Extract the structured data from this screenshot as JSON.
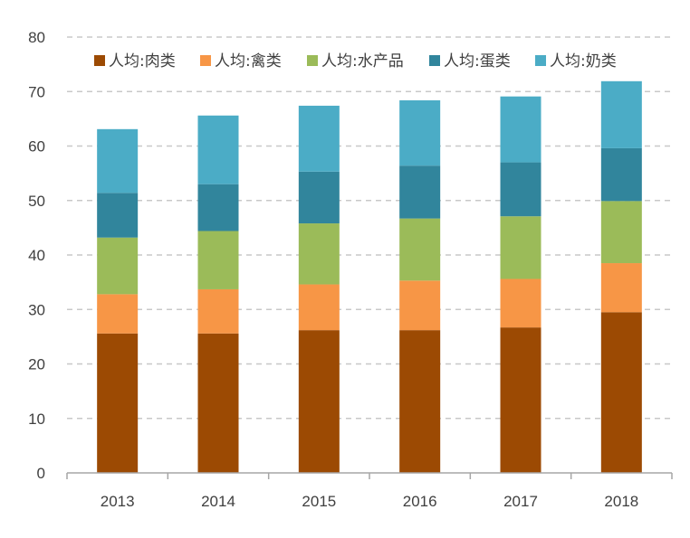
{
  "chart_data": {
    "type": "bar",
    "stacked": true,
    "categories": [
      "2013",
      "2014",
      "2015",
      "2016",
      "2017",
      "2018"
    ],
    "series": [
      {
        "name": "人均:肉类",
        "color": "#9c4a03",
        "values": [
          25.6,
          25.6,
          26.2,
          26.2,
          26.7,
          29.5
        ]
      },
      {
        "name": "人均:禽类",
        "color": "#f79646",
        "values": [
          7.2,
          8.1,
          8.4,
          9.1,
          8.9,
          9.0
        ]
      },
      {
        "name": "人均:水产品",
        "color": "#9bbb59",
        "values": [
          10.4,
          10.7,
          11.2,
          11.4,
          11.5,
          11.4
        ]
      },
      {
        "name": "人均:蛋类",
        "color": "#31859c",
        "values": [
          8.2,
          8.6,
          9.5,
          9.7,
          9.9,
          9.7
        ]
      },
      {
        "name": "人均:奶类",
        "color": "#4bacc6",
        "values": [
          11.7,
          12.6,
          12.1,
          12.0,
          12.1,
          12.3
        ]
      }
    ],
    "ylim": [
      0,
      80
    ],
    "yticks": [
      0,
      10,
      20,
      30,
      40,
      50,
      60,
      70,
      80
    ],
    "grid": "horizontal-dashed",
    "legend_position": "top",
    "title": "",
    "xlabel": "",
    "ylabel": ""
  }
}
